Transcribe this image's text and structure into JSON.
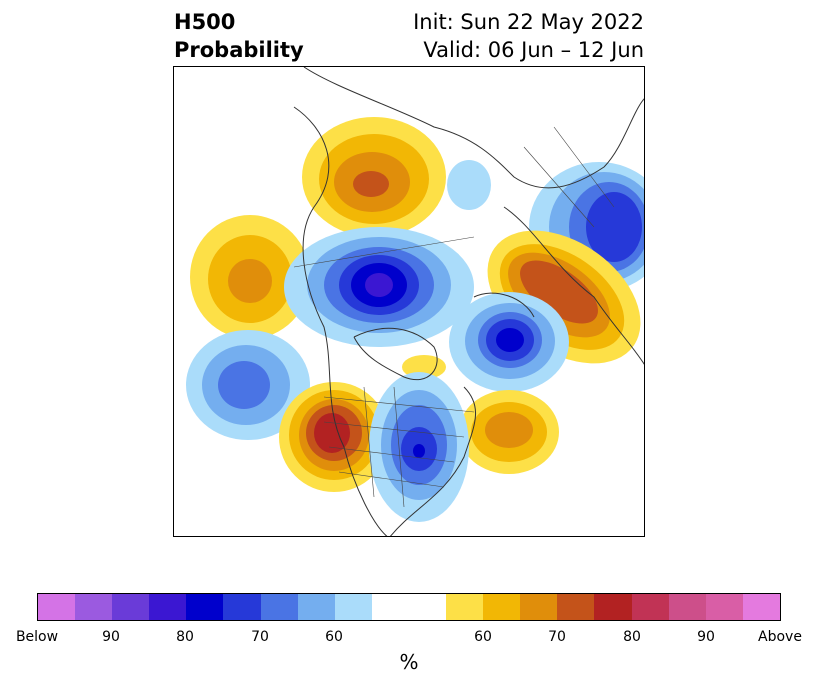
{
  "title": {
    "line1_left": "H500",
    "line2_left": "Probability",
    "line1_right": "Init: Sun 22 May 2022",
    "line2_right": "Valid: 06 Jun – 12 Jun"
  },
  "colorbar": {
    "colors": [
      "#d473e6",
      "#9b5ae0",
      "#6a3bd8",
      "#3b17d2",
      "#0000cc",
      "#2639d8",
      "#4a74e4",
      "#74aeef",
      "#aadcfa",
      "#ffffff",
      "#ffffff",
      "#fde047",
      "#f2b705",
      "#e08e0b",
      "#c4531a",
      "#b22222",
      "#c13355",
      "#cd4f8a",
      "#d95ea6",
      "#e47adf"
    ],
    "labels": [
      "Below",
      "90",
      "80",
      "70",
      "60",
      "60",
      "70",
      "80",
      "90",
      "Above"
    ],
    "unit": "%"
  },
  "map": {
    "projection": "polar stereographic (North America)",
    "features": [
      "coastlines",
      "country borders",
      "state/province borders"
    ]
  }
}
